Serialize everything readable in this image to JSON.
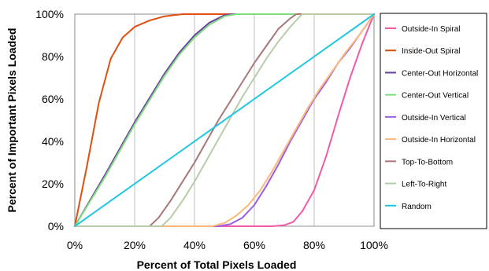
{
  "chart_data": {
    "type": "line",
    "title": "",
    "xlabel": "Percent of Total Pixels Loaded",
    "ylabel": "Percent of Important Pixels Loaded",
    "xlim": [
      0,
      100
    ],
    "ylim": [
      0,
      100
    ],
    "x_ticks": [
      "0%",
      "20%",
      "40%",
      "60%",
      "80%",
      "100%"
    ],
    "y_ticks": [
      "0%",
      "20%",
      "40%",
      "60%",
      "80%",
      "100%"
    ],
    "x_tick_values": [
      0,
      20,
      40,
      60,
      80,
      100
    ],
    "y_tick_values": [
      0,
      20,
      40,
      60,
      80,
      100
    ],
    "grid": "vertical",
    "legend_position": "right",
    "series": [
      {
        "name": "Outside-In Spiral",
        "color": "#f25aa8",
        "points": [
          [
            0,
            0
          ],
          [
            66,
            0
          ],
          [
            70,
            0.5
          ],
          [
            73,
            2
          ],
          [
            76,
            7
          ],
          [
            80,
            17
          ],
          [
            84,
            33
          ],
          [
            88,
            52
          ],
          [
            92,
            70
          ],
          [
            96,
            86
          ],
          [
            100,
            100
          ]
        ]
      },
      {
        "name": "Inside-Out Spiral",
        "color": "#e04e10",
        "points": [
          [
            0,
            0
          ],
          [
            4,
            28
          ],
          [
            8,
            58
          ],
          [
            12,
            79
          ],
          [
            16,
            89
          ],
          [
            20,
            94
          ],
          [
            25,
            97
          ],
          [
            30,
            99
          ],
          [
            36,
            100
          ],
          [
            100,
            100
          ]
        ]
      },
      {
        "name": "Center-Out Horizontal",
        "color": "#6a3fa0",
        "points": [
          [
            0,
            0
          ],
          [
            10,
            24
          ],
          [
            20,
            49
          ],
          [
            30,
            72
          ],
          [
            35,
            82
          ],
          [
            40,
            90
          ],
          [
            45,
            96
          ],
          [
            50,
            99.5
          ],
          [
            53,
            100
          ],
          [
            100,
            100
          ]
        ]
      },
      {
        "name": "Center-Out Vertical",
        "color": "#80dc80",
        "points": [
          [
            0,
            0
          ],
          [
            10,
            23
          ],
          [
            20,
            48
          ],
          [
            30,
            71
          ],
          [
            35,
            81
          ],
          [
            40,
            89
          ],
          [
            45,
            95
          ],
          [
            50,
            99
          ],
          [
            54,
            100
          ],
          [
            100,
            100
          ]
        ]
      },
      {
        "name": "Outside-In Vertical",
        "color": "#9a5ee6",
        "points": [
          [
            0,
            0
          ],
          [
            48,
            0
          ],
          [
            52,
            1
          ],
          [
            56,
            4
          ],
          [
            60,
            10
          ],
          [
            64,
            19
          ],
          [
            68,
            29
          ],
          [
            72,
            40
          ],
          [
            76,
            50
          ],
          [
            80,
            60
          ],
          [
            84,
            68
          ],
          [
            88,
            77
          ],
          [
            92,
            84
          ],
          [
            96,
            92
          ],
          [
            100,
            100
          ]
        ]
      },
      {
        "name": "Outside-In Horizontal",
        "color": "#fbb87a",
        "points": [
          [
            0,
            0
          ],
          [
            46,
            0
          ],
          [
            50,
            1.5
          ],
          [
            54,
            5
          ],
          [
            58,
            10
          ],
          [
            62,
            17
          ],
          [
            66,
            26
          ],
          [
            70,
            36
          ],
          [
            74,
            46
          ],
          [
            78,
            56
          ],
          [
            82,
            65
          ],
          [
            86,
            73
          ],
          [
            90,
            81
          ],
          [
            95,
            90
          ],
          [
            100,
            100
          ]
        ]
      },
      {
        "name": "Top-To-Bottom",
        "color": "#a87878",
        "points": [
          [
            0,
            0
          ],
          [
            25,
            0
          ],
          [
            28,
            4
          ],
          [
            32,
            12
          ],
          [
            36,
            21
          ],
          [
            40,
            30
          ],
          [
            44,
            40
          ],
          [
            48,
            50
          ],
          [
            52,
            59
          ],
          [
            56,
            68
          ],
          [
            60,
            77
          ],
          [
            64,
            85
          ],
          [
            68,
            93
          ],
          [
            72,
            98
          ],
          [
            74,
            100
          ],
          [
            100,
            100
          ]
        ]
      },
      {
        "name": "Left-To-Right",
        "color": "#b9ccaa",
        "points": [
          [
            0,
            0
          ],
          [
            29,
            0
          ],
          [
            32,
            4
          ],
          [
            36,
            12
          ],
          [
            40,
            21
          ],
          [
            44,
            31
          ],
          [
            48,
            41
          ],
          [
            52,
            51
          ],
          [
            56,
            61
          ],
          [
            60,
            70
          ],
          [
            64,
            79
          ],
          [
            68,
            87
          ],
          [
            72,
            94
          ],
          [
            76,
            100
          ],
          [
            100,
            100
          ]
        ]
      },
      {
        "name": "Random",
        "color": "#1ec8e0",
        "points": [
          [
            0,
            0
          ],
          [
            100,
            100
          ]
        ]
      }
    ]
  }
}
